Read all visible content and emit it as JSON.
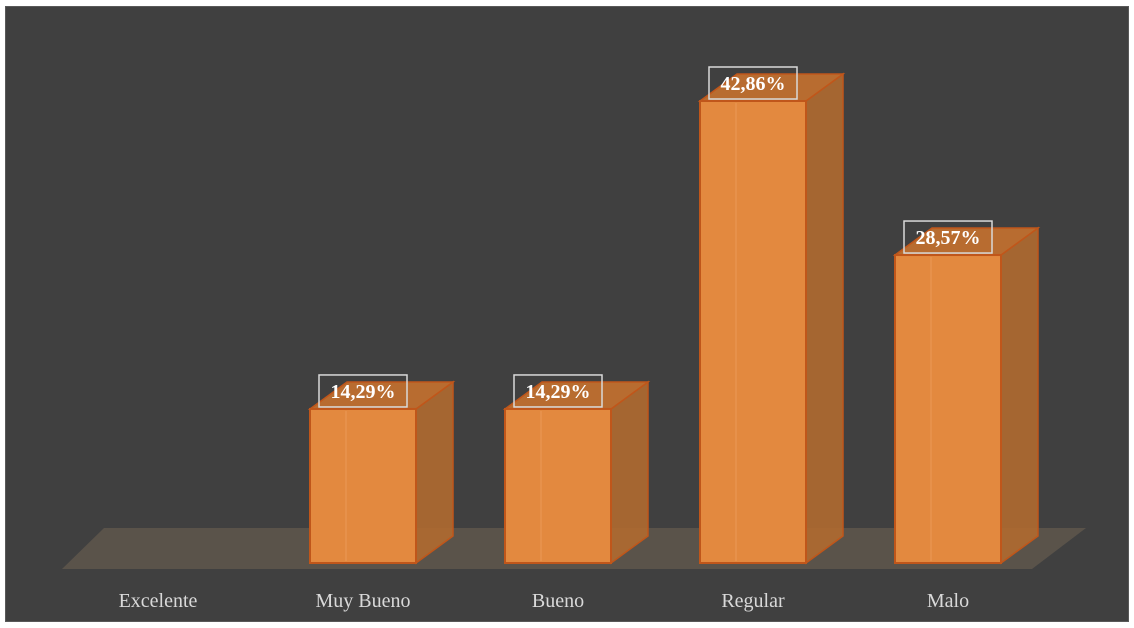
{
  "header_text": "",
  "chart_data": {
    "type": "bar",
    "title": "",
    "xlabel": "",
    "ylabel": "",
    "categories": [
      "Excelente",
      "Muy Bueno",
      "Bueno",
      "Regular",
      "Malo"
    ],
    "values": [
      0,
      14.29,
      14.29,
      42.86,
      28.57
    ],
    "data_labels": [
      "",
      "14,29%",
      "14,29%",
      "42,86%",
      "28,57%"
    ],
    "ylim": [
      0,
      50
    ],
    "grid": false,
    "legend": "none",
    "style": "3d-column",
    "colors": {
      "background": "#404040",
      "bar_front": "#e3893f",
      "bar_side": "#b06a30",
      "bar_top": "#c2702f",
      "bar_edge": "#c0561a",
      "floor": "#5a534a",
      "tick_label": "#d9d9d9",
      "data_label": "#ffffff"
    }
  }
}
